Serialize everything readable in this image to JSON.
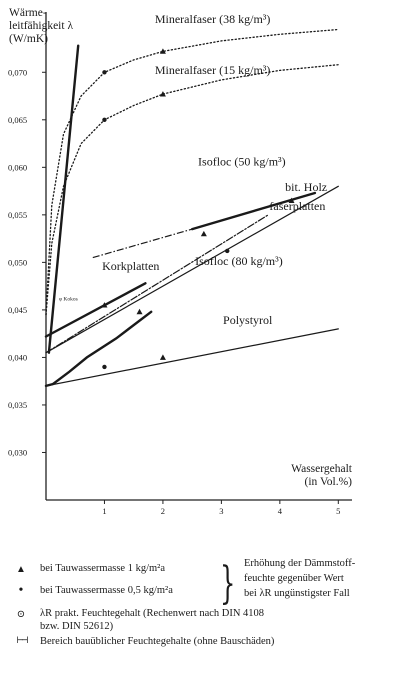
{
  "chart_data": {
    "type": "line",
    "ylabel": "Wärme-\nleitfähigkeit λ\n(W/mK)",
    "xlabel": "Wassergehalt\n(in Vol.%)",
    "ylim": [
      0.025,
      0.0755
    ],
    "xlim": [
      0,
      5.2
    ],
    "yticks": [
      "0,030",
      "0,035",
      "0,040",
      "0,045",
      "0,050",
      "0,055",
      "0,060",
      "0,065",
      "0,070"
    ],
    "xticks": [
      "1",
      "2",
      "3",
      "4",
      "5"
    ],
    "series": [
      {
        "name": "Mineralfaser (38 kg/m³)",
        "style": "dotted",
        "x": [
          0,
          0.1,
          0.3,
          0.6,
          1.0,
          1.5,
          2.0,
          3.0,
          4.0,
          5.0
        ],
        "y": [
          0.0445,
          0.056,
          0.0635,
          0.0675,
          0.07,
          0.0713,
          0.0722,
          0.0733,
          0.074,
          0.0745
        ],
        "markers": [
          {
            "x": 1.0,
            "y": 0.07,
            "symbol": "dot"
          },
          {
            "x": 2.0,
            "y": 0.0722,
            "symbol": "triangle"
          }
        ]
      },
      {
        "name": "Mineralfaser (15 kg/m³)",
        "style": "dotted",
        "x": [
          0,
          0.1,
          0.3,
          0.6,
          1.0,
          1.5,
          2.0,
          3.0,
          4.0,
          5.0
        ],
        "y": [
          0.0445,
          0.052,
          0.058,
          0.0625,
          0.065,
          0.0665,
          0.0677,
          0.0692,
          0.0702,
          0.0708
        ],
        "markers": [
          {
            "x": 1.0,
            "y": 0.065,
            "symbol": "dot"
          },
          {
            "x": 2.0,
            "y": 0.0677,
            "symbol": "triangle"
          }
        ]
      },
      {
        "name": "Isofloc (50 kg/m³)",
        "style": "solid",
        "x": [
          0,
          5.0
        ],
        "y": [
          0.0405,
          0.058
        ],
        "markers": [
          {
            "x": 3.1,
            "y": 0.0512,
            "symbol": "dot"
          }
        ]
      },
      {
        "name": "bit. Holz faserplatten",
        "style": "solid-bold",
        "x": [
          2.5,
          4.6
        ],
        "y": [
          0.0535,
          0.0573
        ],
        "extension": {
          "style": "dashdot",
          "x": [
            0.8,
            2.5
          ],
          "y": [
            0.0505,
            0.0535
          ]
        },
        "markers": [
          {
            "x": 4.2,
            "y": 0.0565,
            "symbol": "triangle"
          }
        ]
      },
      {
        "name": "Isofloc (80 kg/m³)",
        "style": "dashdot",
        "x": [
          0,
          3.8
        ],
        "y": [
          0.0405,
          0.055
        ],
        "markers": [
          {
            "x": 2.7,
            "y": 0.053,
            "symbol": "triangle"
          }
        ]
      },
      {
        "name": "Korkplatten",
        "style": "solid-bold",
        "x": [
          0,
          1.7
        ],
        "y": [
          0.0422,
          0.0478
        ],
        "markers": [
          {
            "x": 1.0,
            "y": 0.0455,
            "symbol": "triangle"
          }
        ]
      },
      {
        "name": "Polystyrol",
        "style": "solid",
        "x": [
          0,
          5.0
        ],
        "y": [
          0.037,
          0.043
        ],
        "markers": [
          {
            "x": 1.0,
            "y": 0.039,
            "symbol": "dot"
          },
          {
            "x": 2.0,
            "y": 0.04,
            "symbol": "triangle"
          }
        ]
      },
      {
        "name": "",
        "style": "solid-bold",
        "x": [
          0,
          0.12,
          0.4,
          0.7,
          1.2,
          1.8
        ],
        "y": [
          0.037,
          0.0372,
          0.0385,
          0.04,
          0.042,
          0.0448
        ],
        "markers": [
          {
            "x": 1.6,
            "y": 0.0448,
            "symbol": "triangle"
          }
        ]
      },
      {
        "name": "",
        "style": "solid-bold",
        "x": [
          0.05,
          0.55
        ],
        "y": [
          0.0405,
          0.0728
        ]
      }
    ],
    "annotations": [
      {
        "text": "Mineralfaser (38 kg/m³)",
        "x": 2.85,
        "y": 0.0752
      },
      {
        "text": "Mineralfaser (15 kg/m³)",
        "x": 2.85,
        "y": 0.0698
      },
      {
        "text": "Isofloc (50 kg/m³)",
        "x": 3.35,
        "y": 0.0602
      },
      {
        "text": "bit. Holz",
        "x": 4.45,
        "y": 0.0575
      },
      {
        "text": "faserplatten",
        "x": 4.3,
        "y": 0.0555
      },
      {
        "text": "Korkplatten",
        "x": 1.45,
        "y": 0.0492
      },
      {
        "text": "Isofloc (80 kg/m³)",
        "x": 3.3,
        "y": 0.0497
      },
      {
        "text": "Polystyrol",
        "x": 3.45,
        "y": 0.0435
      },
      {
        "text": "φ Kokos",
        "x": 0.22,
        "y": 0.046
      }
    ]
  },
  "legend": {
    "items": [
      {
        "symbol": "▲",
        "text": "bei Tauwassermasse 1 kg/m²a"
      },
      {
        "symbol": "•",
        "text": "bei Tauwassermasse 0,5 kg/m²a"
      },
      {
        "symbol": "⊙",
        "text": "λR  prakt. Feuchtegehalt (Rechenwert nach DIN 4108"
      },
      {
        "symbol": "",
        "text": "bzw. DIN 52612)"
      },
      {
        "symbol": "⊢⊣",
        "text": "Bereich bauüblicher Feuchtegehalte (ohne Bauschäden)"
      }
    ],
    "brace_text": [
      "Erhöhung der Dämmstoff-",
      "feuchte gegenüber Wert",
      "bei λR ungünstigster Fall"
    ]
  }
}
